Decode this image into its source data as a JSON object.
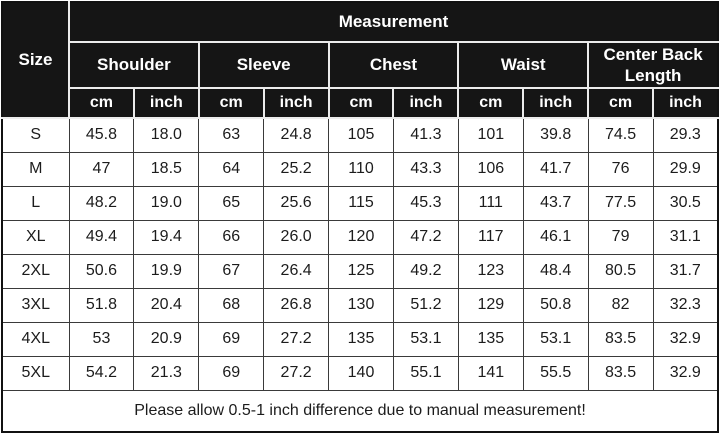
{
  "table": {
    "size_label": "Size",
    "measurement_label": "Measurement",
    "unit_headers": [
      "cm",
      "inch"
    ],
    "categories": [
      "Shoulder",
      "Sleeve",
      "Chest",
      "Waist",
      "Center Back Length"
    ],
    "rows": [
      {
        "size": "S",
        "values": [
          "45.8",
          "18.0",
          "63",
          "24.8",
          "105",
          "41.3",
          "101",
          "39.8",
          "74.5",
          "29.3"
        ]
      },
      {
        "size": "M",
        "values": [
          "47",
          "18.5",
          "64",
          "25.2",
          "110",
          "43.3",
          "106",
          "41.7",
          "76",
          "29.9"
        ]
      },
      {
        "size": "L",
        "values": [
          "48.2",
          "19.0",
          "65",
          "25.6",
          "115",
          "45.3",
          "111",
          "43.7",
          "77.5",
          "30.5"
        ]
      },
      {
        "size": "XL",
        "values": [
          "49.4",
          "19.4",
          "66",
          "26.0",
          "120",
          "47.2",
          "117",
          "46.1",
          "79",
          "31.1"
        ]
      },
      {
        "size": "2XL",
        "values": [
          "50.6",
          "19.9",
          "67",
          "26.4",
          "125",
          "49.2",
          "123",
          "48.4",
          "80.5",
          "31.7"
        ]
      },
      {
        "size": "3XL",
        "values": [
          "51.8",
          "20.4",
          "68",
          "26.8",
          "130",
          "51.2",
          "129",
          "50.8",
          "82",
          "32.3"
        ]
      },
      {
        "size": "4XL",
        "values": [
          "53",
          "20.9",
          "69",
          "27.2",
          "135",
          "53.1",
          "135",
          "53.1",
          "83.5",
          "32.9"
        ]
      },
      {
        "size": "5XL",
        "values": [
          "54.2",
          "21.3",
          "69",
          "27.2",
          "140",
          "55.1",
          "141",
          "55.5",
          "83.5",
          "32.9"
        ]
      }
    ],
    "footer_note": "Please allow 0.5-1 inch difference due to manual measurement!",
    "colors": {
      "header_bg": "#151515",
      "header_text": "#ffffff",
      "body_bg": "#ffffff",
      "body_text": "#1c1c1c",
      "grid_line": "#3a3a3a"
    }
  }
}
